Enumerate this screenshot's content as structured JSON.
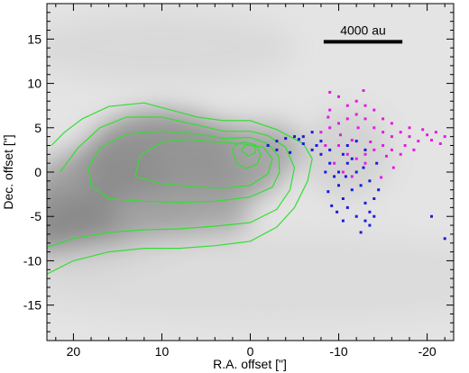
{
  "chart_data": {
    "type": "scatter",
    "title": "",
    "xlabel": "R.A. offset [\"]",
    "ylabel": "Dec. offset [\"]",
    "xlim": [
      23,
      -23
    ],
    "ylim": [
      -19,
      19
    ],
    "x_ticks": [
      20,
      10,
      0,
      -10,
      -20
    ],
    "y_ticks": [
      15,
      10,
      5,
      0,
      -5,
      -10,
      -15
    ],
    "x_tick_labels": [
      "20",
      "10",
      "0",
      "-10",
      "-20"
    ],
    "y_tick_labels": [
      "15",
      "10",
      "5",
      "0",
      "-5",
      "-10",
      "-15"
    ],
    "grid": false,
    "scale_bar": {
      "label": "4000 au",
      "x_from": -8.3,
      "x_to": -17.2,
      "y": 14.7
    },
    "background": {
      "kind": "grayscale_emission_map",
      "colormap": "gray"
    },
    "contours": {
      "color": "#33dd33",
      "levels": [
        [
          [
            23,
            -11.5
          ],
          [
            20,
            -10
          ],
          [
            16,
            -9
          ],
          [
            12,
            -8.6
          ],
          [
            8,
            -8.6
          ],
          [
            4,
            -8.3
          ],
          [
            0,
            -7.8
          ],
          [
            -3,
            -6.2
          ],
          [
            -5,
            -4
          ],
          [
            -6.5,
            -1
          ],
          [
            -7,
            1.5
          ],
          [
            -6,
            3.2
          ],
          [
            -3,
            4.8
          ],
          [
            0,
            5.8
          ],
          [
            3,
            5.8
          ],
          [
            6,
            6.2
          ],
          [
            9,
            7
          ],
          [
            12,
            7.8
          ],
          [
            16,
            7.4
          ],
          [
            19,
            6
          ],
          [
            21,
            4.5
          ],
          [
            22.5,
            3
          ]
        ],
        [
          [
            23,
            -8.5
          ],
          [
            20,
            -7.5
          ],
          [
            16,
            -6.8
          ],
          [
            12,
            -6.5
          ],
          [
            8,
            -6.4
          ],
          [
            4,
            -6.1
          ],
          [
            0,
            -5.7
          ],
          [
            -3,
            -4.2
          ],
          [
            -4.5,
            -2
          ],
          [
            -5,
            0.5
          ],
          [
            -4,
            2.8
          ],
          [
            -2,
            4.1
          ],
          [
            0,
            4.6
          ],
          [
            3,
            4.6
          ],
          [
            6,
            5.3
          ],
          [
            10,
            6.2
          ],
          [
            14,
            6.2
          ],
          [
            17,
            5
          ],
          [
            19.5,
            2.7
          ],
          [
            21.5,
            0
          ]
        ],
        [
          [
            18,
            -1.5
          ],
          [
            16,
            -3
          ],
          [
            12,
            -3.3
          ],
          [
            8,
            -3.4
          ],
          [
            4,
            -3.3
          ],
          [
            0,
            -2.8
          ],
          [
            -2.5,
            -1.7
          ],
          [
            -3.3,
            0
          ],
          [
            -3.2,
            1.8
          ],
          [
            -2,
            3.2
          ],
          [
            0,
            3.9
          ],
          [
            3,
            3.8
          ],
          [
            6,
            4.3
          ],
          [
            10,
            4.6
          ],
          [
            14,
            4.3
          ],
          [
            17,
            2.7
          ],
          [
            18.3,
            0.5
          ]
        ],
        [
          [
            13,
            -0.5
          ],
          [
            10,
            -1.3
          ],
          [
            6,
            -1.7
          ],
          [
            3,
            -1.8
          ],
          [
            0,
            -1.5
          ],
          [
            -2,
            -0.2
          ],
          [
            -2.5,
            1.5
          ],
          [
            -1.5,
            2.8
          ],
          [
            1,
            3.2
          ],
          [
            4,
            3.4
          ],
          [
            7,
            3.7
          ],
          [
            10,
            3.4
          ],
          [
            12.5,
            1.8
          ]
        ],
        [
          [
            2,
            2.5
          ],
          [
            1.6,
            1
          ],
          [
            0.5,
            0.4
          ],
          [
            -0.8,
            0.9
          ],
          [
            -1.2,
            2
          ],
          [
            -0.6,
            3.1
          ],
          [
            0.8,
            3.4
          ],
          [
            1.8,
            3
          ]
        ],
        [
          [
            1,
            2.4
          ],
          [
            0.2,
            1.8
          ],
          [
            -0.6,
            2.2
          ],
          [
            -0.5,
            2.9
          ],
          [
            0.5,
            3.1
          ]
        ]
      ]
    },
    "series": [
      {
        "color": "#1a1adc",
        "points": [
          [
            -2,
            3
          ],
          [
            -3,
            3.5
          ],
          [
            -4,
            3.8
          ],
          [
            -5,
            4
          ],
          [
            -6,
            3.2
          ],
          [
            -7,
            2.5
          ],
          [
            -8,
            2
          ],
          [
            -9,
            1
          ],
          [
            -9.5,
            -0.5
          ],
          [
            -10,
            -1.5
          ],
          [
            -10.5,
            -3
          ],
          [
            -11,
            -4
          ],
          [
            -12,
            -5
          ],
          [
            -13,
            -5.5
          ],
          [
            -13.5,
            -6
          ],
          [
            -14,
            -5
          ],
          [
            -14,
            -3
          ],
          [
            -13.5,
            -1
          ],
          [
            -12,
            0
          ],
          [
            -11,
            1
          ],
          [
            -10.5,
            2
          ],
          [
            -11,
            3
          ],
          [
            -12,
            3.5
          ],
          [
            -13,
            2.5
          ],
          [
            -14.3,
            1
          ],
          [
            -14.5,
            -2
          ],
          [
            -13,
            -3.5
          ],
          [
            -11.5,
            -2
          ],
          [
            -10,
            0
          ],
          [
            -9,
            2.5
          ],
          [
            -8,
            3.5
          ],
          [
            -7,
            4.5
          ],
          [
            -6,
            4
          ],
          [
            -9.8,
            -4.5
          ],
          [
            -12.5,
            -6.8
          ],
          [
            -13.5,
            -4.5
          ],
          [
            -10.5,
            -5.5
          ],
          [
            -8.5,
            0
          ],
          [
            -11.5,
            1.5
          ],
          [
            -12.5,
            -1.5
          ],
          [
            -22,
            -7.5
          ],
          [
            -20.5,
            -5
          ],
          [
            -3,
            2.5
          ],
          [
            -4.5,
            2.2
          ],
          [
            -5.5,
            3.7
          ],
          [
            -7.5,
            3
          ],
          [
            -8.8,
            -2.2
          ],
          [
            -9.2,
            -3.8
          ],
          [
            -10.8,
            -0.5
          ],
          [
            -12.8,
            0.5
          ]
        ]
      },
      {
        "color": "#e619e6",
        "points": [
          [
            -8,
            4.5
          ],
          [
            -9,
            5
          ],
          [
            -10,
            5.5
          ],
          [
            -11,
            6
          ],
          [
            -12,
            6.5
          ],
          [
            -13,
            6
          ],
          [
            -14,
            5
          ],
          [
            -15,
            4.5
          ],
          [
            -16,
            4
          ],
          [
            -17,
            4.5
          ],
          [
            -18,
            4
          ],
          [
            -19,
            3.5
          ],
          [
            -20,
            4.2
          ],
          [
            -21,
            4.5
          ],
          [
            -22,
            4
          ],
          [
            -10,
            3
          ],
          [
            -11,
            2
          ],
          [
            -12,
            1.5
          ],
          [
            -13,
            2
          ],
          [
            -14,
            2.5
          ],
          [
            -15,
            3
          ],
          [
            -16,
            2.5
          ],
          [
            -17,
            2
          ],
          [
            -11,
            7.5
          ],
          [
            -10,
            8.5
          ],
          [
            -9,
            7
          ],
          [
            -12,
            8
          ],
          [
            -13,
            7.5
          ],
          [
            -14,
            7
          ],
          [
            -9.5,
            1
          ],
          [
            -10.5,
            0
          ],
          [
            -11.5,
            -0.5
          ],
          [
            -13,
            1
          ],
          [
            -8.5,
            3
          ],
          [
            -9,
            9
          ],
          [
            -15,
            6
          ],
          [
            -16,
            5.5
          ],
          [
            -17.5,
            3
          ],
          [
            -18.5,
            2.5
          ],
          [
            -18,
            5
          ],
          [
            -19.5,
            4.8
          ],
          [
            -20.5,
            3.6
          ],
          [
            -21.5,
            3.2
          ],
          [
            -12.2,
            5
          ],
          [
            -13.6,
            3.4
          ],
          [
            -15.4,
            1.8
          ],
          [
            -11.5,
            3.6
          ],
          [
            -10.2,
            4.2
          ],
          [
            -14.8,
            -0.6
          ],
          [
            -16.2,
            0.5
          ],
          [
            -8.8,
            6.2
          ],
          [
            -12.8,
            9.2
          ]
        ]
      }
    ]
  }
}
